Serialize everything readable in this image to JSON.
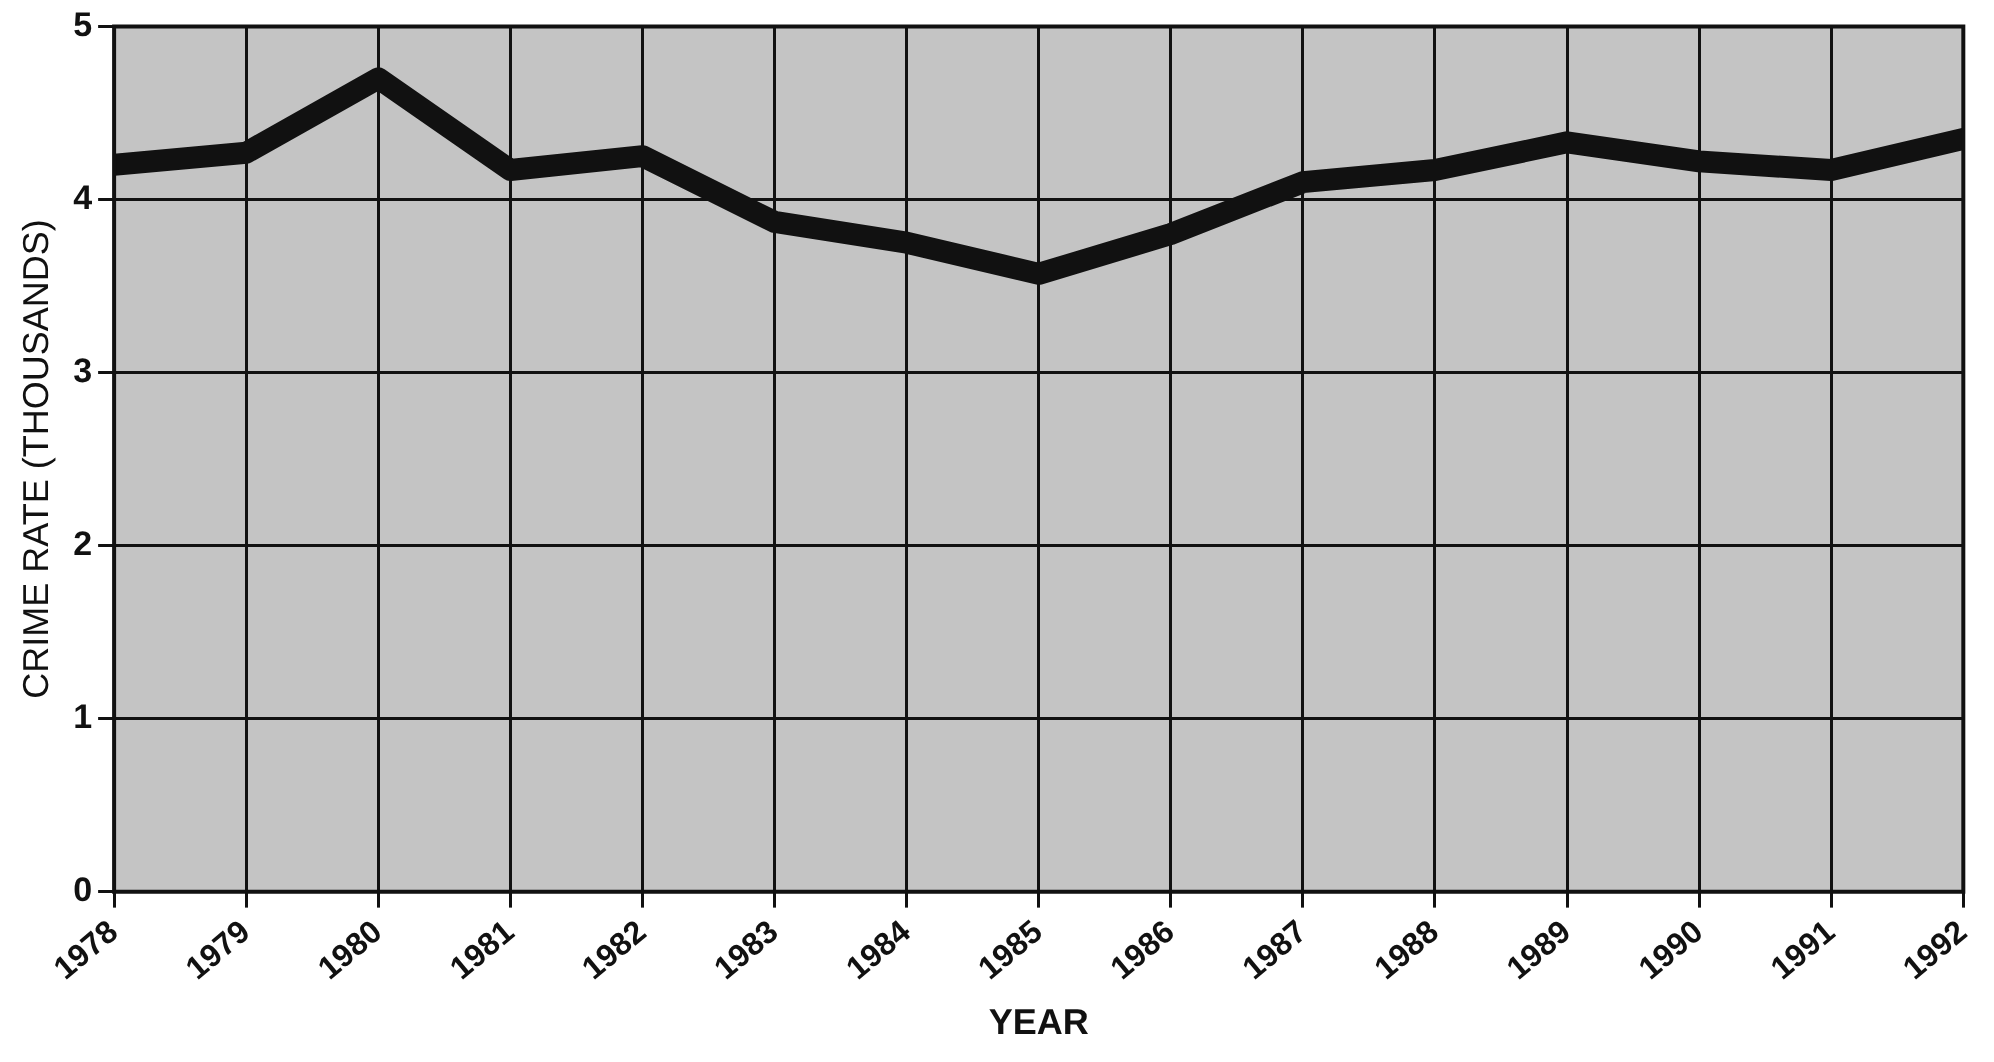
{
  "chart_data": {
    "type": "line",
    "xlabel": "YEAR",
    "ylabel": "CRIME RATE (THOUSANDS)",
    "x": [
      1978,
      1979,
      1980,
      1981,
      1982,
      1983,
      1984,
      1985,
      1986,
      1987,
      1988,
      1989,
      1990,
      1991,
      1992
    ],
    "series": [
      {
        "color": "#111111",
        "values": [
          4.2,
          4.27,
          4.7,
          4.17,
          4.25,
          3.87,
          3.75,
          3.57,
          3.8,
          4.1,
          4.17,
          4.33,
          4.22,
          4.17,
          4.35
        ]
      }
    ],
    "xlim": [
      1978,
      1992
    ],
    "xticks": [
      1978,
      1979,
      1980,
      1981,
      1982,
      1983,
      1984,
      1985,
      1986,
      1987,
      1988,
      1989,
      1990,
      1991,
      1992
    ],
    "ylim": [
      0,
      5
    ],
    "yticks": [
      0,
      1,
      2,
      3,
      4,
      5
    ],
    "grid": true,
    "legend": false,
    "marker": "none",
    "line_style": "solid"
  }
}
